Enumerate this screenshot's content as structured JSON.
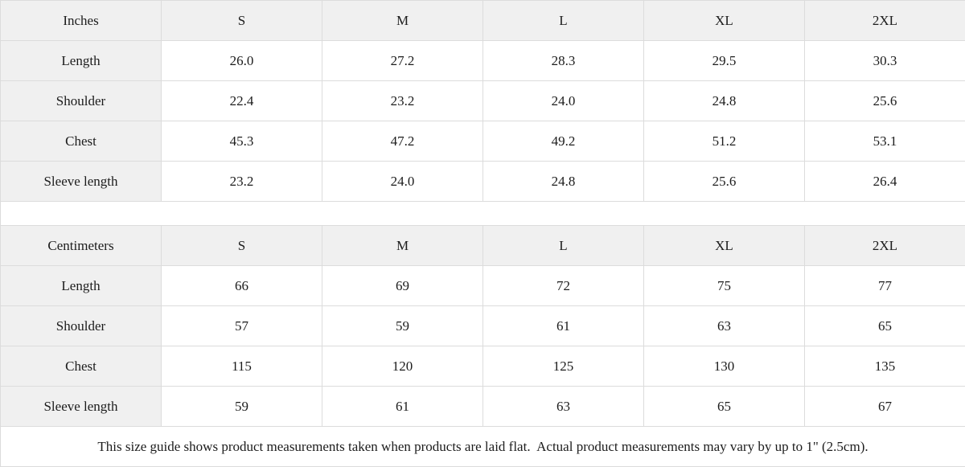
{
  "colors": {
    "header_background": "#f0f0f0",
    "cell_background": "#ffffff",
    "border": "#dcdcdc",
    "text": "#1c1c1c"
  },
  "inches_table": {
    "unit_header": "Inches",
    "sizes": [
      "S",
      "M",
      "L",
      "XL",
      "2XL"
    ],
    "rows": [
      {
        "label": "Length",
        "values": [
          "26.0",
          "27.2",
          "28.3",
          "29.5",
          "30.3"
        ]
      },
      {
        "label": "Shoulder",
        "values": [
          "22.4",
          "23.2",
          "24.0",
          "24.8",
          "25.6"
        ]
      },
      {
        "label": "Chest",
        "values": [
          "45.3",
          "47.2",
          "49.2",
          "51.2",
          "53.1"
        ]
      },
      {
        "label": "Sleeve length",
        "values": [
          "23.2",
          "24.0",
          "24.8",
          "25.6",
          "26.4"
        ]
      }
    ]
  },
  "centimeters_table": {
    "unit_header": "Centimeters",
    "sizes": [
      "S",
      "M",
      "L",
      "XL",
      "2XL"
    ],
    "rows": [
      {
        "label": "Length",
        "values": [
          "66",
          "69",
          "72",
          "75",
          "77"
        ]
      },
      {
        "label": "Shoulder",
        "values": [
          "57",
          "59",
          "61",
          "63",
          "65"
        ]
      },
      {
        "label": "Chest",
        "values": [
          "115",
          "120",
          "125",
          "130",
          "135"
        ]
      },
      {
        "label": "Sleeve length",
        "values": [
          "59",
          "61",
          "63",
          "65",
          "67"
        ]
      }
    ]
  },
  "footer": {
    "note": "This size guide shows product measurements taken when products are laid flat.  Actual product measurements may vary by up to 1\" (2.5cm)."
  }
}
